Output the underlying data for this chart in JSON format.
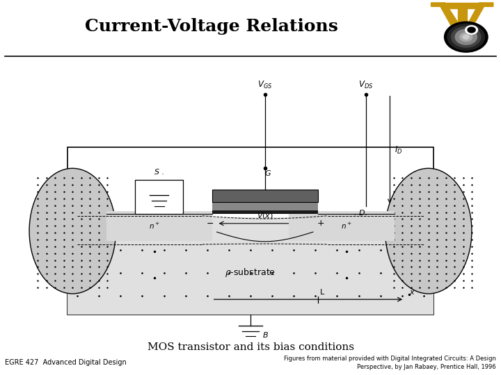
{
  "title": "Current-Voltage Relations",
  "title_fontsize": 18,
  "title_fontweight": "bold",
  "bg_color": "#ffffff",
  "footer_left": "EGRE 427  Advanced Digital Design",
  "footer_right_line1": "Figures from material provided with Digital Integrated Circuits: A Design",
  "footer_right_line2": "Perspective, by Jan Rabaey, Prentice Hall, 1996",
  "caption": "MOS transistor and its bias conditions",
  "caption_fontsize": 11,
  "footer_fontsize": 6,
  "logo_gold": "#c8960c"
}
